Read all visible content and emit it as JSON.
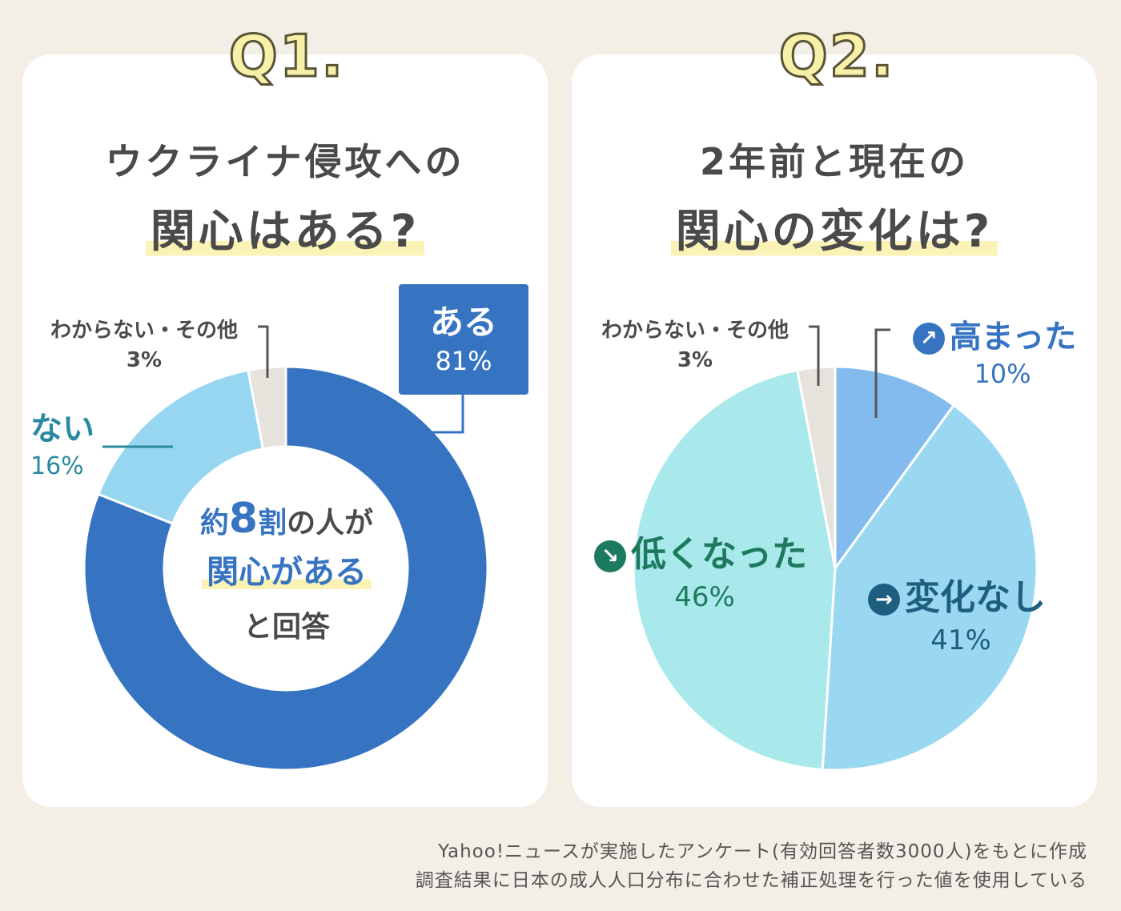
{
  "q1": {
    "tag": "Q1.",
    "title_line1": "ウクライナ侵攻への",
    "title_line2": "関心はある?",
    "center_text": {
      "part1": "約",
      "num": "8",
      "part2": "割",
      "part3": "の人が",
      "line2": "関心がある",
      "line3": "と回答"
    },
    "labels": {
      "aru": "ある",
      "aru_pct": "81%",
      "nai": "ない",
      "nai_pct": "16%",
      "other": "わからない・その他",
      "other_pct": "3%"
    }
  },
  "q2": {
    "tag": "Q2.",
    "title_line1": "2年前と現在の",
    "title_line2": "関心の変化は?",
    "labels": {
      "up": "高まった",
      "up_pct": "10%",
      "same": "変化なし",
      "same_pct": "41%",
      "down": "低くなった",
      "down_pct": "46%",
      "other": "わからない・その他",
      "other_pct": "3%"
    },
    "icons": {
      "up": "↗",
      "same": "→",
      "down": "↘"
    }
  },
  "footer": {
    "line1": "Yahoo!ニュースが実施したアンケート(有効回答者数3000人)をもとに作成",
    "line2": "調査結果に日本の成人人口分布に合わせた補正処理を行った値を使用している"
  },
  "colors": {
    "aru": "#3674c2",
    "nai": "#97d6f1",
    "other": "#e6e2dc",
    "up": "#84bbef",
    "same": "#9ad8f2",
    "down": "#a9e9ec",
    "teal_text": "#2a8aa0",
    "green_text": "#1e7a5e"
  },
  "chart_data": [
    {
      "type": "pie",
      "variant": "donut",
      "title": "ウクライナ侵攻への関心はある?",
      "categories": [
        "ある",
        "ない",
        "わからない・その他"
      ],
      "values": [
        81,
        16,
        3
      ],
      "unit": "%"
    },
    {
      "type": "pie",
      "title": "2年前と現在の関心の変化は?",
      "categories": [
        "高まった",
        "変化なし",
        "低くなった",
        "わからない・その他"
      ],
      "values": [
        10,
        41,
        46,
        3
      ],
      "unit": "%"
    }
  ]
}
